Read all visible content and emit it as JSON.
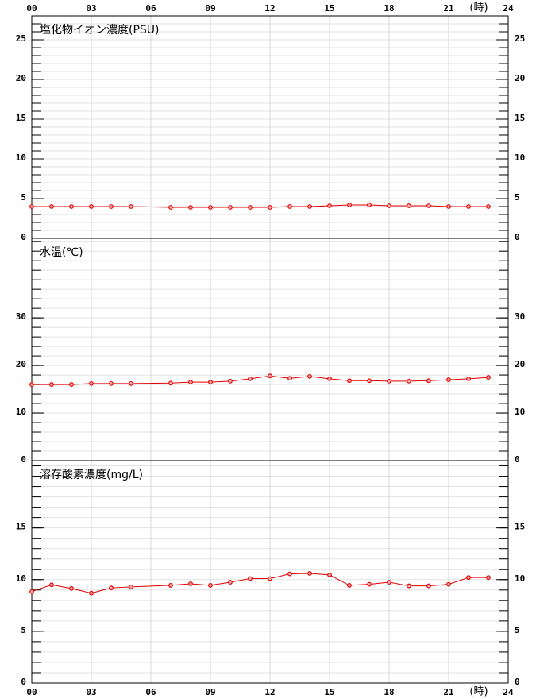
{
  "chart_data": [
    {
      "type": "line",
      "title": "塩化物イオン濃度(PSU)",
      "xlabel": "(時)",
      "x": [
        0,
        1,
        2,
        3,
        4,
        5,
        7,
        8,
        9,
        10,
        11,
        12,
        13,
        14,
        15,
        16,
        17,
        18,
        19,
        20,
        21,
        22,
        23
      ],
      "values": [
        4.0,
        4.0,
        4.0,
        4.0,
        4.0,
        4.0,
        3.9,
        3.9,
        3.9,
        3.9,
        3.9,
        3.9,
        4.0,
        4.0,
        4.1,
        4.2,
        4.2,
        4.1,
        4.1,
        4.1,
        4.0,
        4.0,
        4.0
      ],
      "color": "#e00000",
      "xlim": [
        0,
        24
      ],
      "xticks": [
        {
          "value": 0,
          "label": "00"
        },
        {
          "value": 3,
          "label": "03"
        },
        {
          "value": 6,
          "label": "06"
        },
        {
          "value": 9,
          "label": "09"
        },
        12,
        15,
        18,
        21,
        24
      ],
      "ylim": [
        0,
        28
      ],
      "yticks": [
        0,
        5,
        10,
        15,
        20,
        25
      ],
      "minor_ystep": 1,
      "grid": true
    },
    {
      "type": "line",
      "title": "水温(℃)",
      "x": [
        0,
        1,
        2,
        3,
        4,
        5,
        7,
        8,
        9,
        10,
        11,
        12,
        13,
        14,
        15,
        16,
        17,
        18,
        19,
        20,
        21,
        22,
        23
      ],
      "values": [
        16.0,
        16.0,
        16.0,
        16.2,
        16.2,
        16.2,
        16.3,
        16.5,
        16.5,
        16.7,
        17.2,
        17.8,
        17.3,
        17.7,
        17.2,
        16.8,
        16.8,
        16.7,
        16.7,
        16.8,
        17.0,
        17.2,
        17.5
      ],
      "color": "#e00000",
      "xlim": [
        0,
        24
      ],
      "xticks": [
        {
          "value": 0,
          "label": "00"
        },
        {
          "value": 3,
          "label": "03"
        },
        {
          "value": 6,
          "label": "06"
        },
        {
          "value": 9,
          "label": "09"
        },
        12,
        15,
        18,
        21,
        24
      ],
      "ylim": [
        0,
        46.7
      ],
      "yticks": [
        0,
        10,
        20,
        30
      ],
      "minor_ystep": 2,
      "grid": true
    },
    {
      "type": "line",
      "title": "溶存酸素濃度(mg/L)",
      "xlabel": "(時)",
      "x": [
        0,
        1,
        2,
        3,
        4,
        5,
        7,
        8,
        9,
        10,
        11,
        12,
        13,
        14,
        15,
        16,
        17,
        18,
        19,
        20,
        21,
        22,
        23
      ],
      "values": [
        8.85,
        9.5,
        9.15,
        8.7,
        9.2,
        9.3,
        9.45,
        9.6,
        9.45,
        9.75,
        10.1,
        10.1,
        10.55,
        10.6,
        10.45,
        9.45,
        9.55,
        9.75,
        9.4,
        9.4,
        9.55,
        10.2,
        10.2
      ],
      "color": "#e00000",
      "xlim": [
        0,
        24
      ],
      "xticks": [
        {
          "value": 0,
          "label": "00"
        },
        {
          "value": 3,
          "label": "03"
        },
        {
          "value": 6,
          "label": "06"
        },
        {
          "value": 9,
          "label": "09"
        },
        12,
        15,
        18,
        21,
        24
      ],
      "ylim": [
        0,
        21.5
      ],
      "yticks": [
        0,
        5,
        10,
        15
      ],
      "minor_ystep": 1,
      "grid": true
    }
  ]
}
